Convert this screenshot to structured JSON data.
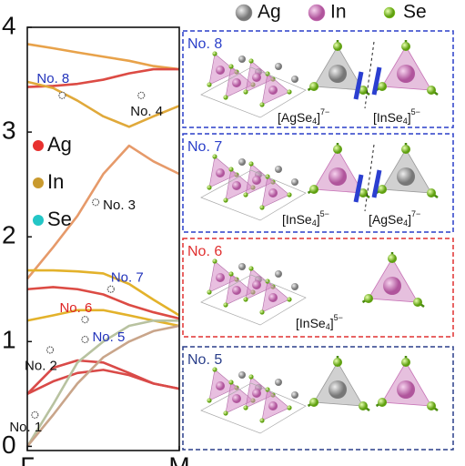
{
  "chart_data": {
    "type": "line",
    "xlim": [
      0,
      1
    ],
    "xticks": [
      {
        "value": 0,
        "label": "Γ"
      },
      {
        "value": 1,
        "label": "M"
      }
    ],
    "ylim": [
      -0.04,
      4.0
    ],
    "yticks": [
      0,
      1,
      2,
      3,
      4
    ],
    "x": [
      0,
      0.17,
      0.33,
      0.5,
      0.67,
      0.83,
      1
    ],
    "series": [
      {
        "color": "#e8a24a",
        "values": [
          3.84,
          3.8,
          3.76,
          3.72,
          3.68,
          3.63,
          3.6
        ]
      },
      {
        "color": "#dc4b44",
        "values": [
          3.43,
          3.44,
          3.46,
          3.5,
          3.56,
          3.6,
          3.6
        ]
      },
      {
        "color": "#e0a93a",
        "values": [
          3.48,
          3.42,
          3.3,
          3.15,
          3.05,
          3.15,
          3.25
        ]
      },
      {
        "color": "#e69a6a",
        "values": [
          1.6,
          1.9,
          2.2,
          2.6,
          2.87,
          2.72,
          2.6
        ]
      },
      {
        "color": "#e3b22b",
        "values": [
          1.68,
          1.68,
          1.67,
          1.65,
          1.55,
          1.4,
          1.25
        ]
      },
      {
        "color": "#dc4b44",
        "values": [
          1.5,
          1.52,
          1.5,
          1.45,
          1.35,
          1.28,
          1.22
        ]
      },
      {
        "color": "#e3b22b",
        "values": [
          1.2,
          1.25,
          1.3,
          1.3,
          1.25,
          1.2,
          1.15
        ]
      },
      {
        "color": "#d94a48",
        "values": [
          0.5,
          0.75,
          0.82,
          0.8,
          0.7,
          0.6,
          0.55
        ]
      },
      {
        "color": "#d94a48",
        "values": [
          0.5,
          0.62,
          0.7,
          0.73,
          0.68,
          0.6,
          0.55
        ]
      },
      {
        "color": "#b8c2a0",
        "values": [
          0,
          0.4,
          0.8,
          1.0,
          1.15,
          1.2,
          1.2
        ]
      },
      {
        "color": "#c9a58a",
        "values": [
          0,
          0.3,
          0.6,
          0.85,
          1.0,
          1.1,
          1.15
        ]
      }
    ],
    "legend": [
      {
        "name": "Ag",
        "color": "#e8312f"
      },
      {
        "name": "In",
        "color": "#c99a2e"
      },
      {
        "name": "Se",
        "color": "#23c6c6"
      }
    ],
    "modes": [
      {
        "label": "No. 1",
        "x": 0.05,
        "y": 0.3,
        "color": "#111111"
      },
      {
        "label": "No. 2",
        "x": 0.15,
        "y": 0.92,
        "color": "#111111"
      },
      {
        "label": "No. 3",
        "x": 0.45,
        "y": 2.33,
        "color": "#111111"
      },
      {
        "label": "No. 4",
        "x": 0.75,
        "y": 3.35,
        "color": "#111111"
      },
      {
        "label": "No. 5",
        "x": 0.38,
        "y": 1.02,
        "color": "#2233bb"
      },
      {
        "label": "No. 6",
        "x": 0.38,
        "y": 1.21,
        "color": "#dd2222"
      },
      {
        "label": "No. 7",
        "x": 0.55,
        "y": 1.5,
        "color": "#2233bb"
      },
      {
        "label": "No. 8",
        "x": 0.23,
        "y": 3.35,
        "color": "#2233bb"
      }
    ]
  },
  "structure_legend": [
    {
      "name": "Ag",
      "color": "#9a9a9a"
    },
    {
      "name": "In",
      "color": "#d27ec0"
    },
    {
      "name": "Se",
      "color": "#8fd12a"
    }
  ],
  "panels": [
    {
      "label": "No. 8",
      "color": "#2a3fc9",
      "formulas": [
        {
          "pre": "[AgSe",
          "sub": "4",
          "post": "]",
          "sup": "7−"
        },
        {
          "pre": "[InSe",
          "sub": "4",
          "post": "]",
          "sup": "5−"
        }
      ]
    },
    {
      "label": "No. 7",
      "color": "#2a3fc9",
      "formulas": [
        {
          "pre": "[InSe",
          "sub": "4",
          "post": "]",
          "sup": "5−"
        },
        {
          "pre": "[AgSe",
          "sub": "4",
          "post": "]",
          "sup": "7−"
        }
      ]
    },
    {
      "label": "No. 6",
      "color": "#e03030",
      "formulas": [
        {
          "pre": "[InSe",
          "sub": "4",
          "post": "]",
          "sup": "5−"
        }
      ]
    },
    {
      "label": "No. 5",
      "color": "#2a3f8a",
      "formulas": []
    }
  ]
}
